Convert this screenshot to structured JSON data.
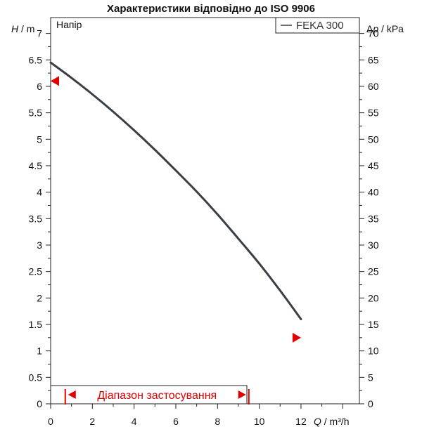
{
  "chart_data": {
    "type": "line",
    "title": "Характеристики відповідно до ISO 9906",
    "panel_label": "Напір",
    "y_axis_left": {
      "label_var": "H",
      "label_unit": " / m",
      "range": [
        0,
        7.3
      ],
      "ticks": [
        0,
        0.5,
        1,
        1.5,
        2,
        2.5,
        3,
        3.5,
        4,
        4.5,
        5,
        5.5,
        6,
        6.5,
        7
      ]
    },
    "y_axis_right": {
      "label_prefix": "Δ",
      "label_var": "p",
      "label_unit": " / kPa",
      "range": [
        0,
        73
      ],
      "ticks": [
        0,
        5,
        10,
        15,
        20,
        25,
        30,
        35,
        40,
        45,
        50,
        55,
        60,
        65,
        70
      ]
    },
    "x_axis": {
      "label_var": "Q",
      "label_unit": " / m³/h",
      "range": [
        0,
        14.8
      ],
      "ticks": [
        0,
        2,
        4,
        6,
        8,
        10,
        12
      ]
    },
    "series": [
      {
        "name": "FEKA 300",
        "color": "#3a3f47",
        "x": [
          0,
          1,
          2,
          3,
          4,
          5,
          6,
          7,
          8,
          9,
          10,
          11,
          12
        ],
        "y": [
          6.45,
          6.16,
          5.85,
          5.52,
          5.17,
          4.8,
          4.41,
          4.01,
          3.58,
          3.12,
          2.65,
          2.14,
          1.6
        ]
      }
    ],
    "markers": [
      {
        "x": 0,
        "y": 6.1,
        "direction": "left",
        "color": "#e00000"
      },
      {
        "x": 12,
        "y": 1.25,
        "direction": "right",
        "color": "#e00000"
      }
    ],
    "application_range": {
      "label": "Діапазон застосування",
      "x_start": 0.7,
      "x_end": 9.5,
      "color": "#e00000"
    },
    "legend_position": "top-right",
    "grid": false
  }
}
